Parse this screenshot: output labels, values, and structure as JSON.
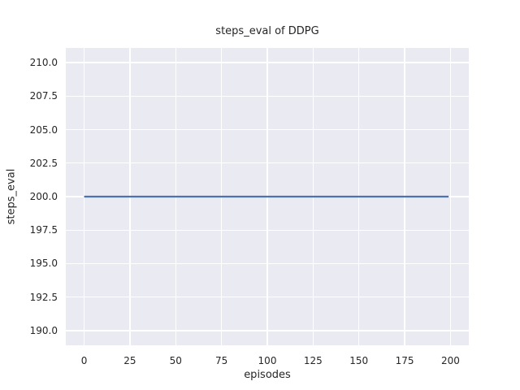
{
  "chart_data": {
    "type": "line",
    "title": "steps_eval of DDPG",
    "xlabel": "episodes",
    "ylabel": "steps_eval",
    "xlim": [
      -10,
      210
    ],
    "ylim": [
      188.9,
      211.1
    ],
    "xticks": [
      0,
      25,
      50,
      75,
      100,
      125,
      150,
      175,
      200
    ],
    "xtick_labels": [
      "0",
      "25",
      "50",
      "75",
      "100",
      "125",
      "150",
      "175",
      "200"
    ],
    "yticks": [
      190.0,
      192.5,
      195.0,
      197.5,
      200.0,
      202.5,
      205.0,
      207.5,
      210.0
    ],
    "ytick_labels": [
      "190.0",
      "192.5",
      "195.0",
      "197.5",
      "200.0",
      "202.5",
      "205.0",
      "207.5",
      "210.0"
    ],
    "grid": true,
    "legend": false,
    "plot_background_color": "#EAEAF2",
    "grid_color": "#FFFFFF",
    "text_color": "#262626",
    "series": [
      {
        "name": "DDPG",
        "color": "#4C72B0",
        "line_width": 2.2,
        "x": [
          0,
          199
        ],
        "y": [
          200,
          200
        ]
      }
    ]
  }
}
